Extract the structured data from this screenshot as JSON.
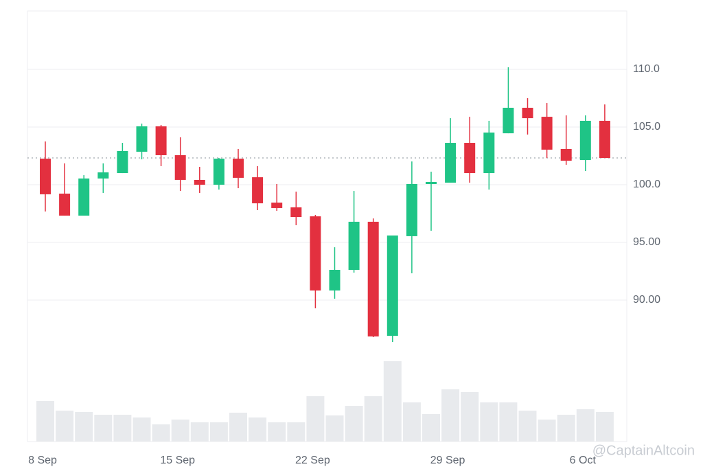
{
  "chart_data": {
    "type": "candlestick",
    "categories": [
      "8 Sep",
      null,
      null,
      null,
      null,
      null,
      null,
      "15 Sep",
      null,
      null,
      null,
      null,
      null,
      null,
      "22 Sep",
      null,
      null,
      null,
      null,
      null,
      null,
      "29 Sep",
      null,
      null,
      null,
      null,
      null,
      null,
      "6 Oct",
      null
    ],
    "open": [
      102.26,
      99.23,
      97.32,
      100.54,
      101.01,
      102.86,
      105.06,
      102.56,
      100.42,
      100.0,
      102.26,
      100.65,
      98.45,
      98.04,
      97.26,
      90.83,
      92.62,
      96.79,
      86.9,
      95.54,
      100.06,
      100.18,
      103.63,
      101.01,
      104.46,
      106.67,
      105.89,
      103.1,
      102.14,
      105.54
    ],
    "high": [
      103.75,
      101.85,
      100.83,
      101.85,
      103.63,
      105.3,
      105.18,
      104.11,
      101.55,
      102.32,
      103.1,
      101.61,
      100.06,
      99.4,
      97.38,
      94.58,
      99.46,
      97.08,
      95.6,
      102.02,
      101.13,
      105.77,
      105.89,
      105.54,
      110.18,
      107.5,
      107.08,
      106.01,
      106.01,
      106.96
    ],
    "low": [
      97.68,
      97.32,
      97.32,
      99.29,
      101.01,
      102.2,
      101.61,
      99.46,
      99.29,
      99.58,
      99.7,
      97.8,
      97.74,
      96.49,
      89.29,
      90.12,
      92.38,
      86.79,
      86.37,
      92.32,
      96.01,
      100.18,
      100.18,
      99.58,
      104.46,
      104.35,
      102.32,
      101.73,
      101.19,
      102.32
    ],
    "close": [
      99.17,
      97.32,
      100.54,
      101.07,
      102.92,
      105.06,
      102.56,
      100.42,
      100.0,
      102.26,
      100.6,
      98.39,
      97.98,
      97.2,
      90.83,
      92.62,
      96.79,
      86.85,
      95.6,
      100.06,
      100.24,
      103.63,
      101.01,
      104.52,
      106.67,
      105.77,
      103.04,
      102.08,
      105.54,
      102.32
    ],
    "volume": [
      59,
      45,
      43,
      39,
      39,
      35,
      25,
      32,
      28,
      28,
      42,
      35,
      28,
      28,
      66,
      38,
      52,
      66,
      117,
      57,
      40,
      76,
      72,
      57,
      57,
      45,
      32,
      39,
      47,
      43
    ],
    "up_color": "#1fc486",
    "down_color": "#e3303f",
    "volume_color": "#e8eaed",
    "ylim": [
      77.74,
      115.06
    ],
    "yticks": [
      {
        "value": 90,
        "label": "90.00"
      },
      {
        "value": 95,
        "label": "95.00"
      },
      {
        "value": 100,
        "label": "100.0"
      },
      {
        "value": 105,
        "label": "105.0"
      },
      {
        "value": 110,
        "label": "110.0"
      }
    ],
    "volume_lim": [
      0,
      130
    ],
    "price_line": 102.32,
    "grid": true,
    "watermark": "@CaptainAltcoin"
  }
}
